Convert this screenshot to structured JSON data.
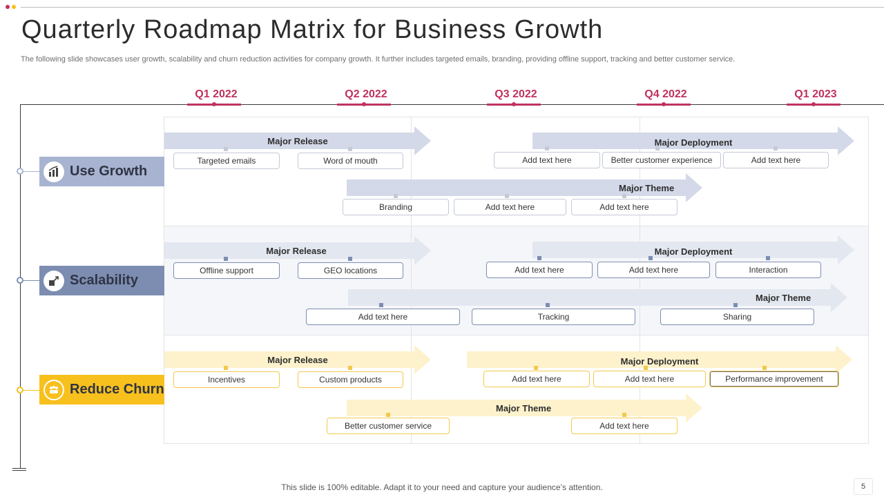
{
  "title": "Quarterly Roadmap Matrix for Business Growth",
  "subtitle": "The following slide showcases user growth, scalability and churn reduction activities for company growth. It further includes targeted emails, branding, providing offline support, tracking and better customer service.",
  "colors": {
    "accent": "#c0325e",
    "growth_arrow": "#d3d9e8",
    "growth_box": "#c4c9d6",
    "growth_cat": "#a8b3d1",
    "scal_arrow": "#e3e7f0",
    "scal_box": "#7c8db1",
    "scal_cat": "#7c8db1",
    "churn_arrow": "#fdf2cc",
    "churn_box": "#f2c84c",
    "churn_cat": "#f7c01d"
  },
  "quarters": [
    "Q1 2022",
    "Q2 2022",
    "Q3 2022",
    "Q4 2022",
    "Q1 2023"
  ],
  "categories": [
    {
      "label": "Use Growth",
      "icon": "chart-growth-icon"
    },
    {
      "label": "Scalability",
      "icon": "scale-expand-icon"
    },
    {
      "label": "Reduce Churn",
      "icon": "team-people-icon"
    }
  ],
  "rows": {
    "growth": {
      "release": {
        "label": "Major Release",
        "items": [
          "Targeted emails",
          "Word of mouth"
        ]
      },
      "deployment": {
        "label": "Major Deployment",
        "items": [
          "Add text here",
          "Better customer experience",
          "Add text here"
        ]
      },
      "theme": {
        "label": "Major Theme",
        "items": [
          "Branding",
          "Add text here",
          "Add text here"
        ]
      }
    },
    "scalability": {
      "release": {
        "label": "Major Release",
        "items": [
          "Offline support",
          "GEO locations"
        ]
      },
      "deployment": {
        "label": "Major Deployment",
        "items": [
          "Add text here",
          "Add text here",
          "Interaction"
        ]
      },
      "theme": {
        "label": "Major Theme",
        "items": [
          "Add text here",
          "Tracking",
          "Sharing"
        ]
      }
    },
    "churn": {
      "release": {
        "label": "Major Release",
        "items": [
          "Incentives",
          "Custom products"
        ]
      },
      "deployment": {
        "label": "Major Deployment",
        "items": [
          "Add text here",
          "Add text here",
          "Performance improvement"
        ]
      },
      "theme": {
        "label": "Major Theme",
        "items": [
          "Better customer service",
          "Add text here"
        ]
      }
    }
  },
  "footer": "This slide is 100% editable. Adapt it to your need and capture your audience’s attention.",
  "page_number": "5"
}
